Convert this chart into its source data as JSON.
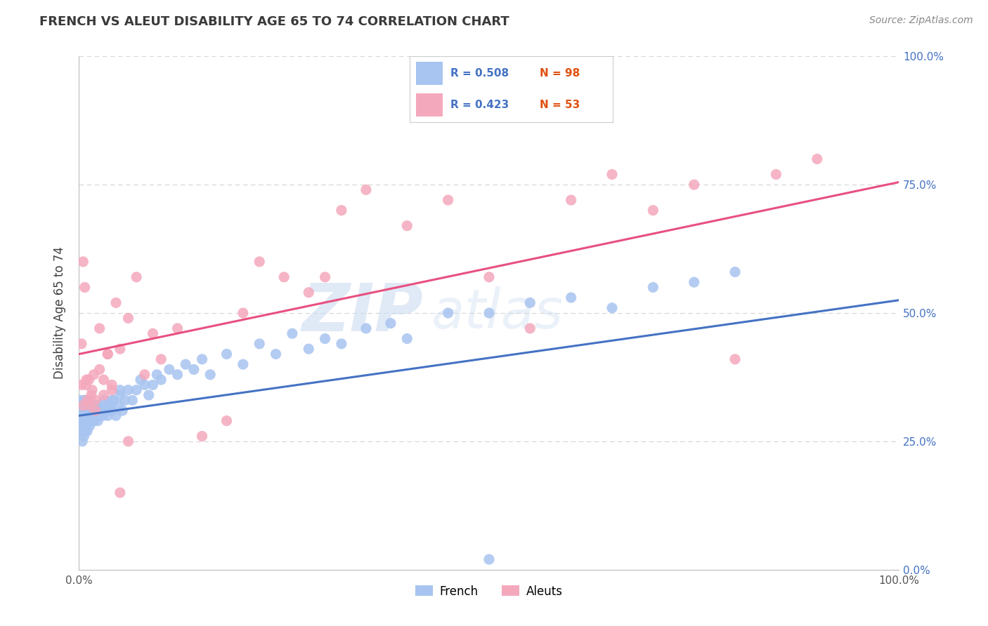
{
  "title": "FRENCH VS ALEUT DISABILITY AGE 65 TO 74 CORRELATION CHART",
  "source_text": "Source: ZipAtlas.com",
  "ylabel": "Disability Age 65 to 74",
  "xlim": [
    0.0,
    1.0
  ],
  "ylim": [
    0.0,
    1.0
  ],
  "xtick_labels": [
    "0.0%",
    "100.0%"
  ],
  "ytick_labels": [
    "100.0%",
    "75.0%",
    "50.0%",
    "25.0%",
    "0.0%"
  ],
  "ytick_positions": [
    1.0,
    0.75,
    0.5,
    0.25,
    0.0
  ],
  "french_R": 0.508,
  "french_N": 98,
  "aleut_R": 0.423,
  "aleut_N": 53,
  "french_scatter_color": "#a8c4f0",
  "aleut_scatter_color": "#f4a8bc",
  "french_line_color": "#4472c4",
  "aleut_line_color": "#e85080",
  "background_color": "#ffffff",
  "grid_color": "#cccccc",
  "title_color": "#3a3a3a",
  "yticklabel_color": "#4472c4",
  "legend_r_color": "#4472c4",
  "legend_n_color": "#e05010",
  "watermark_zip_color": "#c8d8f0",
  "watermark_atlas_color": "#c8d8f0",
  "french_line_x0": 0.0,
  "french_line_x1": 1.0,
  "french_line_y0": 0.3,
  "french_line_y1": 0.525,
  "aleut_line_x0": 0.0,
  "aleut_line_x1": 1.0,
  "aleut_line_y0": 0.42,
  "aleut_line_y1": 0.755,
  "french_x": [
    0.002,
    0.003,
    0.003,
    0.004,
    0.004,
    0.005,
    0.005,
    0.005,
    0.006,
    0.006,
    0.007,
    0.007,
    0.008,
    0.008,
    0.009,
    0.009,
    0.01,
    0.01,
    0.011,
    0.012,
    0.013,
    0.013,
    0.014,
    0.015,
    0.016,
    0.017,
    0.018,
    0.019,
    0.02,
    0.021,
    0.022,
    0.023,
    0.025,
    0.027,
    0.029,
    0.031,
    0.033,
    0.035,
    0.038,
    0.04,
    0.042,
    0.045,
    0.048,
    0.05,
    0.053,
    0.056,
    0.06,
    0.065,
    0.07,
    0.075,
    0.08,
    0.085,
    0.09,
    0.095,
    0.1,
    0.11,
    0.12,
    0.13,
    0.14,
    0.15,
    0.16,
    0.18,
    0.2,
    0.22,
    0.24,
    0.26,
    0.28,
    0.3,
    0.32,
    0.35,
    0.38,
    0.4,
    0.45,
    0.5,
    0.55,
    0.6,
    0.65,
    0.7,
    0.75,
    0.8,
    0.003,
    0.004,
    0.005,
    0.006,
    0.007,
    0.008,
    0.009,
    0.01,
    0.013,
    0.015,
    0.018,
    0.02,
    0.025,
    0.03,
    0.035,
    0.04,
    0.05,
    0.5
  ],
  "french_y": [
    0.33,
    0.3,
    0.28,
    0.31,
    0.29,
    0.3,
    0.32,
    0.28,
    0.3,
    0.33,
    0.29,
    0.31,
    0.3,
    0.33,
    0.28,
    0.31,
    0.3,
    0.32,
    0.29,
    0.31,
    0.3,
    0.33,
    0.29,
    0.31,
    0.3,
    0.32,
    0.29,
    0.31,
    0.3,
    0.32,
    0.31,
    0.29,
    0.32,
    0.31,
    0.3,
    0.33,
    0.31,
    0.3,
    0.32,
    0.31,
    0.33,
    0.3,
    0.32,
    0.34,
    0.31,
    0.33,
    0.35,
    0.33,
    0.35,
    0.37,
    0.36,
    0.34,
    0.36,
    0.38,
    0.37,
    0.39,
    0.38,
    0.4,
    0.39,
    0.41,
    0.38,
    0.42,
    0.4,
    0.44,
    0.42,
    0.46,
    0.43,
    0.45,
    0.44,
    0.47,
    0.48,
    0.45,
    0.5,
    0.5,
    0.52,
    0.53,
    0.51,
    0.55,
    0.56,
    0.58,
    0.27,
    0.25,
    0.28,
    0.26,
    0.28,
    0.27,
    0.29,
    0.27,
    0.28,
    0.3,
    0.29,
    0.31,
    0.3,
    0.31,
    0.32,
    0.33,
    0.35,
    0.02
  ],
  "aleut_x": [
    0.003,
    0.005,
    0.007,
    0.009,
    0.012,
    0.015,
    0.018,
    0.02,
    0.025,
    0.03,
    0.035,
    0.04,
    0.045,
    0.05,
    0.06,
    0.07,
    0.08,
    0.09,
    0.1,
    0.12,
    0.15,
    0.18,
    0.2,
    0.22,
    0.25,
    0.28,
    0.3,
    0.32,
    0.35,
    0.4,
    0.45,
    0.5,
    0.55,
    0.6,
    0.65,
    0.7,
    0.75,
    0.8,
    0.85,
    0.9,
    0.003,
    0.005,
    0.008,
    0.01,
    0.013,
    0.016,
    0.02,
    0.025,
    0.03,
    0.035,
    0.04,
    0.05,
    0.06
  ],
  "aleut_y": [
    0.44,
    0.6,
    0.55,
    0.37,
    0.37,
    0.34,
    0.38,
    0.31,
    0.47,
    0.34,
    0.42,
    0.36,
    0.52,
    0.43,
    0.49,
    0.57,
    0.38,
    0.46,
    0.41,
    0.47,
    0.26,
    0.29,
    0.5,
    0.6,
    0.57,
    0.54,
    0.57,
    0.7,
    0.74,
    0.67,
    0.72,
    0.57,
    0.47,
    0.72,
    0.77,
    0.7,
    0.75,
    0.41,
    0.77,
    0.8,
    0.36,
    0.32,
    0.36,
    0.33,
    0.32,
    0.35,
    0.33,
    0.39,
    0.37,
    0.42,
    0.35,
    0.15,
    0.25
  ]
}
